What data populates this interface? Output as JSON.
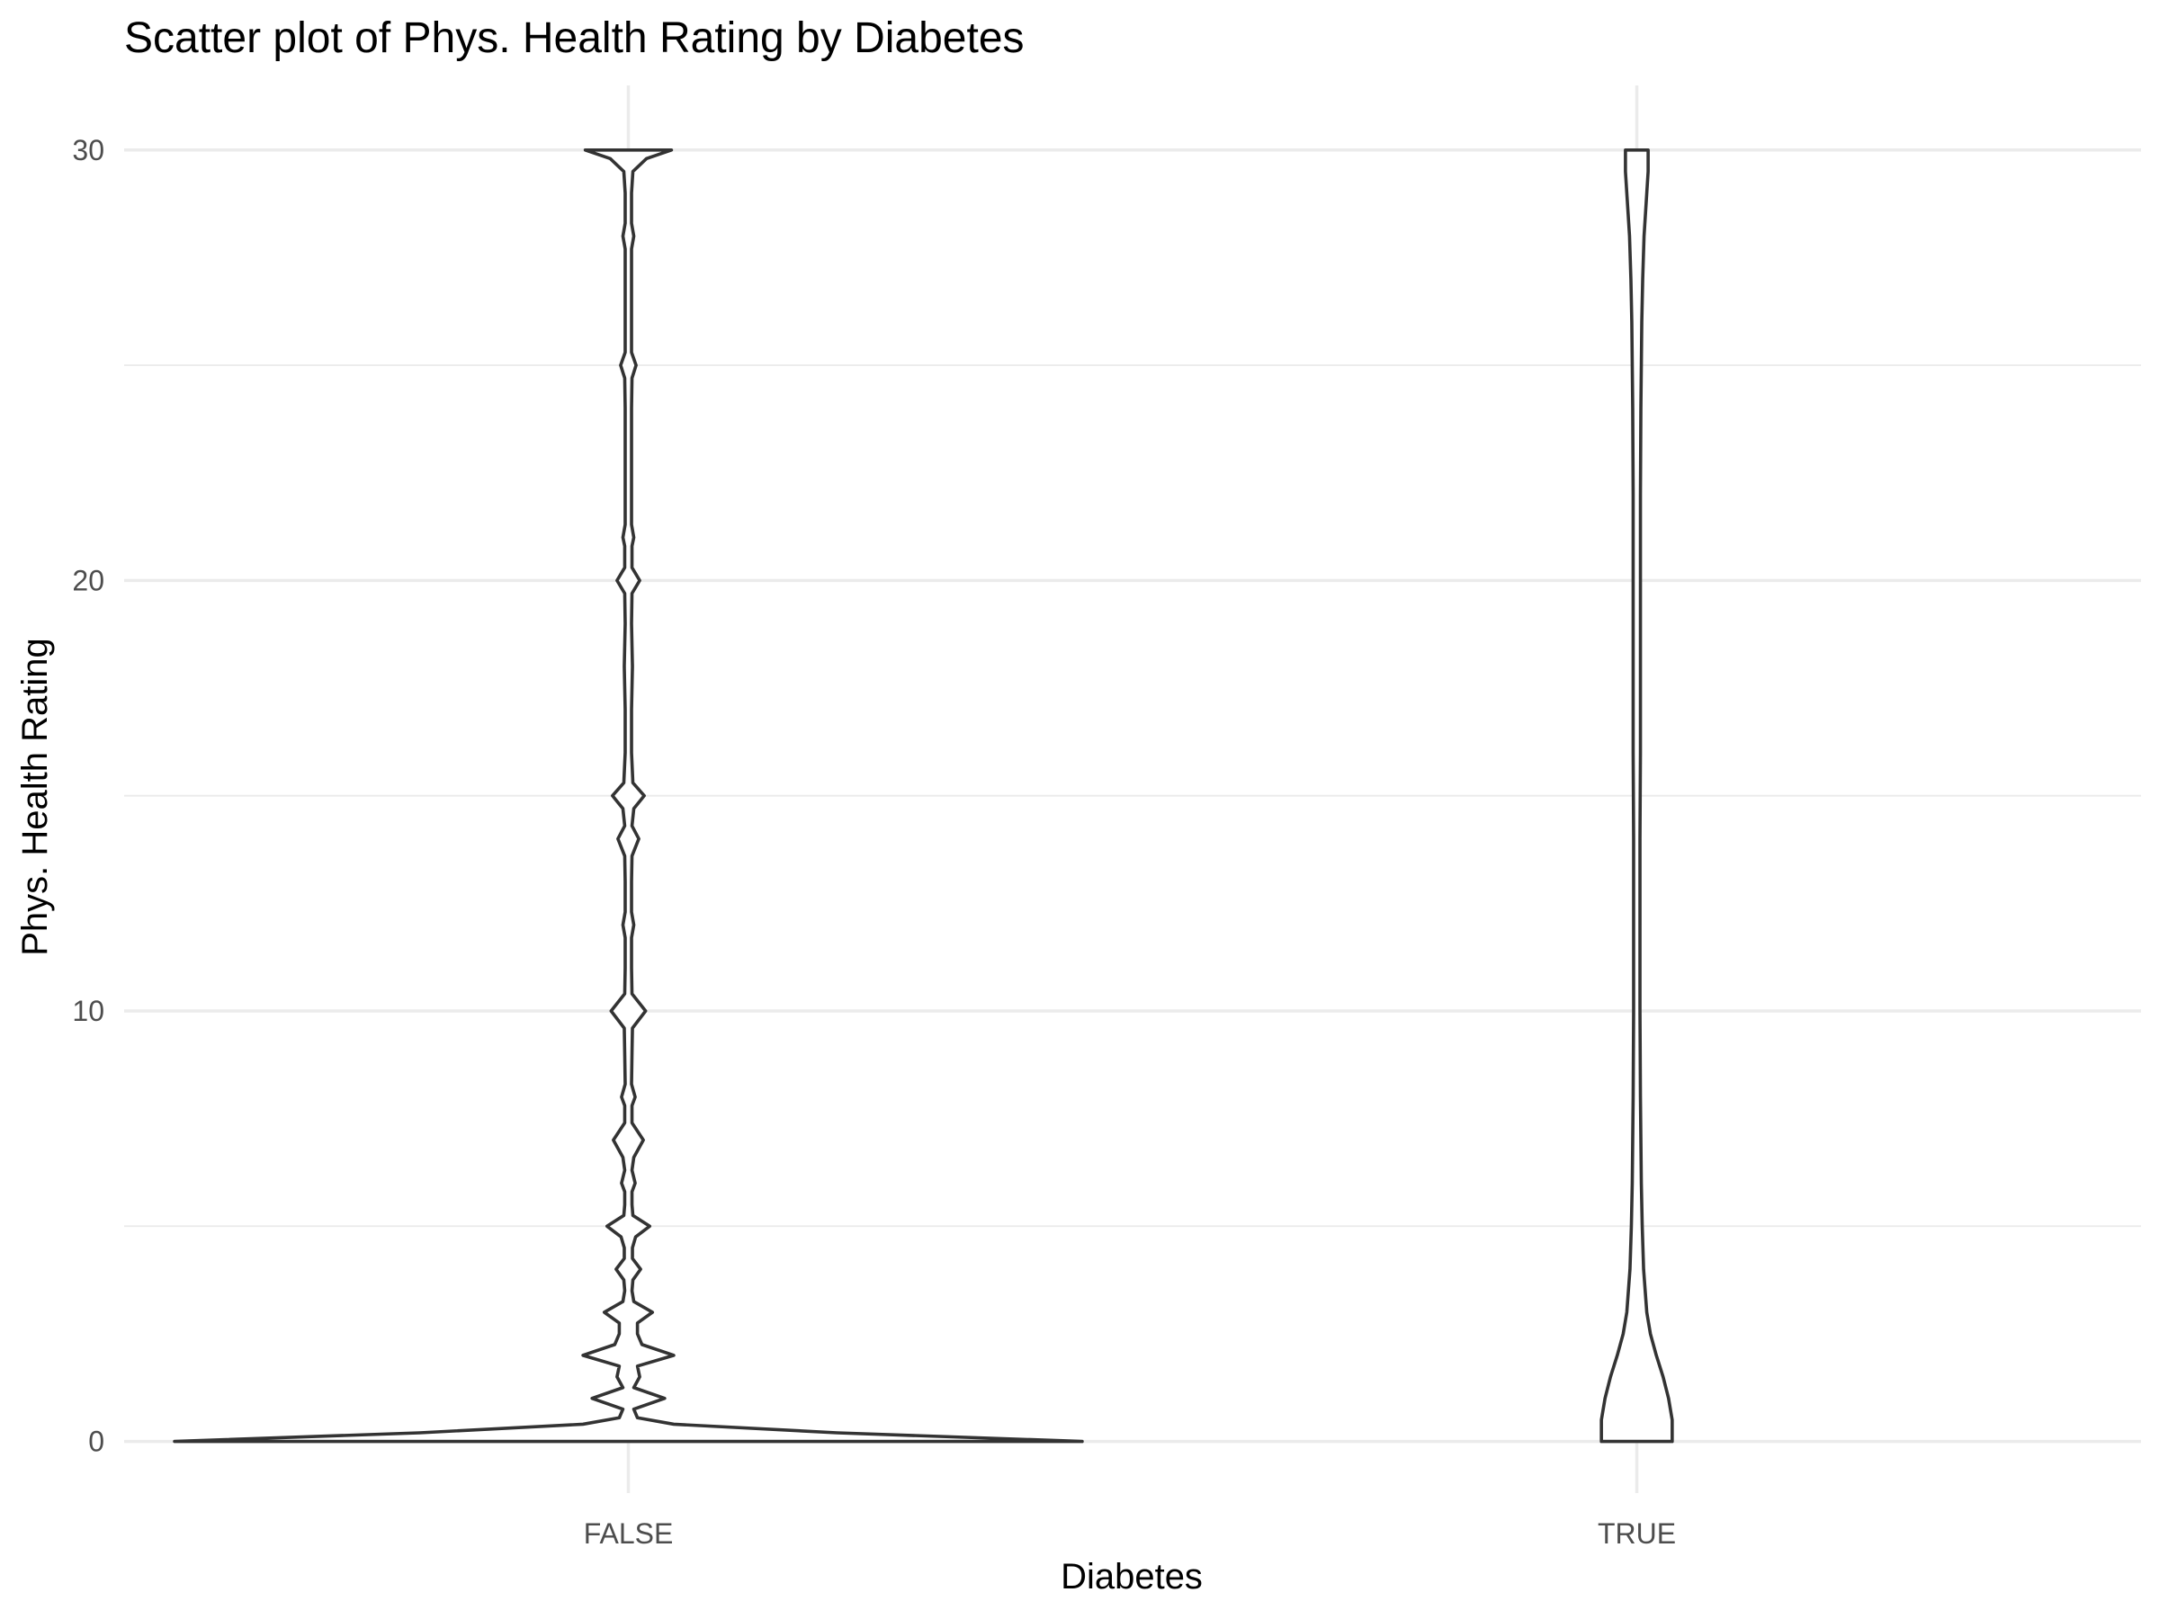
{
  "chart_data": {
    "type": "violin",
    "title": "Scatter plot of Phys. Health Rating by Diabetes",
    "xlabel": "Diabetes",
    "ylabel": "Phys. Health Rating",
    "categories": [
      "FALSE",
      "TRUE"
    ],
    "ylim": [
      -1.2,
      31.5
    ],
    "y_ticks": [
      0,
      10,
      20,
      30
    ],
    "y_minor_ticks": [
      5,
      15,
      25
    ],
    "grid": true,
    "legend": "none",
    "colors": {
      "outline": "#333333",
      "fill": "#ffffff",
      "grid": "#ebebeb",
      "tick_text": "#4d4d4d"
    },
    "series": [
      {
        "category": "FALSE",
        "density_profile": [
          [
            0,
            1.0
          ],
          [
            0.2,
            0.46
          ],
          [
            0.4,
            0.1
          ],
          [
            0.55,
            0.02
          ],
          [
            0.75,
            0.012
          ],
          [
            1.0,
            0.08
          ],
          [
            1.25,
            0.012
          ],
          [
            1.5,
            0.025
          ],
          [
            1.75,
            0.02
          ],
          [
            2.0,
            0.1
          ],
          [
            2.25,
            0.03
          ],
          [
            2.5,
            0.02
          ],
          [
            2.75,
            0.02
          ],
          [
            3.0,
            0.053
          ],
          [
            3.25,
            0.012
          ],
          [
            3.5,
            0.008
          ],
          [
            3.75,
            0.01
          ],
          [
            4.0,
            0.027
          ],
          [
            4.25,
            0.009
          ],
          [
            4.5,
            0.009
          ],
          [
            4.75,
            0.016
          ],
          [
            5.0,
            0.047
          ],
          [
            5.25,
            0.01
          ],
          [
            5.5,
            0.008
          ],
          [
            5.8,
            0.008
          ],
          [
            6.0,
            0.015
          ],
          [
            6.3,
            0.008
          ],
          [
            6.6,
            0.012
          ],
          [
            7.0,
            0.033
          ],
          [
            7.4,
            0.008
          ],
          [
            7.8,
            0.008
          ],
          [
            8.0,
            0.015
          ],
          [
            8.3,
            0.007
          ],
          [
            9.0,
            0.008
          ],
          [
            9.6,
            0.009
          ],
          [
            10.0,
            0.038
          ],
          [
            10.4,
            0.008
          ],
          [
            11.0,
            0.007
          ],
          [
            11.7,
            0.007
          ],
          [
            12.0,
            0.012
          ],
          [
            12.3,
            0.007
          ],
          [
            13.0,
            0.007
          ],
          [
            13.6,
            0.008
          ],
          [
            14.0,
            0.023
          ],
          [
            14.3,
            0.008
          ],
          [
            14.7,
            0.012
          ],
          [
            15.0,
            0.035
          ],
          [
            15.3,
            0.01
          ],
          [
            16.0,
            0.007
          ],
          [
            17.0,
            0.007
          ],
          [
            18.0,
            0.009
          ],
          [
            19.0,
            0.007
          ],
          [
            19.7,
            0.008
          ],
          [
            20.0,
            0.025
          ],
          [
            20.3,
            0.008
          ],
          [
            20.8,
            0.008
          ],
          [
            21.0,
            0.012
          ],
          [
            21.3,
            0.007
          ],
          [
            22.0,
            0.007
          ],
          [
            23.0,
            0.007
          ],
          [
            24.0,
            0.007
          ],
          [
            24.7,
            0.008
          ],
          [
            25.0,
            0.017
          ],
          [
            25.3,
            0.007
          ],
          [
            26.0,
            0.007
          ],
          [
            27.0,
            0.007
          ],
          [
            27.7,
            0.007
          ],
          [
            28.0,
            0.012
          ],
          [
            28.3,
            0.007
          ],
          [
            29.0,
            0.007
          ],
          [
            29.5,
            0.01
          ],
          [
            29.8,
            0.04
          ],
          [
            30.0,
            0.095
          ]
        ]
      },
      {
        "category": "TRUE",
        "density_profile": [
          [
            0,
            0.078
          ],
          [
            0.5,
            0.078
          ],
          [
            1.0,
            0.07
          ],
          [
            1.5,
            0.058
          ],
          [
            2.0,
            0.043
          ],
          [
            2.5,
            0.03
          ],
          [
            3.0,
            0.022
          ],
          [
            4.0,
            0.015
          ],
          [
            5.0,
            0.012
          ],
          [
            6.0,
            0.01
          ],
          [
            8.0,
            0.008
          ],
          [
            10.0,
            0.007
          ],
          [
            12.0,
            0.007
          ],
          [
            14.0,
            0.007
          ],
          [
            16.0,
            0.008
          ],
          [
            18.0,
            0.008
          ],
          [
            20.0,
            0.008
          ],
          [
            22.0,
            0.008
          ],
          [
            24.0,
            0.009
          ],
          [
            26.0,
            0.011
          ],
          [
            27.0,
            0.013
          ],
          [
            28.0,
            0.016
          ],
          [
            29.0,
            0.022
          ],
          [
            29.5,
            0.025
          ],
          [
            30.0,
            0.025
          ]
        ]
      }
    ]
  }
}
